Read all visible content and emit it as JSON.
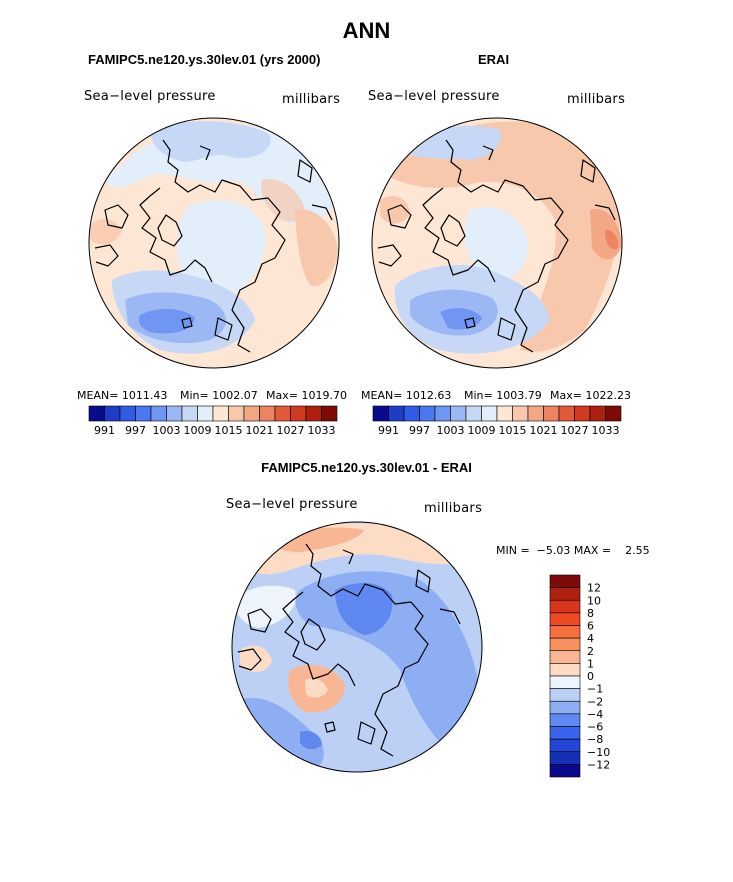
{
  "page": {
    "title": "ANN"
  },
  "panels": [
    {
      "title": "FAMIPC5.ne120.ys.30lev.01 (yrs 2000)",
      "field_label": "Sea−level pressure",
      "units_label": "millibars",
      "stats": {
        "mean": "MEAN= 1011.43",
        "min": "Min= 1002.07",
        "max": "Max= 1019.70"
      }
    },
    {
      "title": "ERAI",
      "field_label": "Sea−level pressure",
      "units_label": "millibars",
      "stats": {
        "mean": "MEAN= 1012.63",
        "min": "Min= 1003.79",
        "max": "Max= 1022.23"
      }
    },
    {
      "title": "FAMIPC5.ne120.ys.30lev.01 - ERAI",
      "field_label": "Sea−level pressure",
      "units_label": "millibars",
      "stats": {
        "minmax": "MIN =  −5.03 MAX =    2.55"
      }
    }
  ],
  "chart_data": [
    {
      "type": "heatmap",
      "title": "FAMIPC5.ne120.ys.30lev.01 (yrs 2000)",
      "variable": "Sea-level pressure",
      "units": "millibars",
      "stats": {
        "mean": 1011.43,
        "min": 1002.07,
        "max": 1019.7
      },
      "colorbar": {
        "orientation": "horizontal",
        "tick_labels": [
          "991",
          "997",
          "1003",
          "1009",
          "1015",
          "1021",
          "1027",
          "1033"
        ],
        "colors": [
          "#0a0a8c",
          "#1e3cc8",
          "#2f5be6",
          "#4a78f0",
          "#6f96f2",
          "#9cb8f4",
          "#c6d8f6",
          "#e2eef9",
          "#fde6d4",
          "#f8c8ac",
          "#f2a785",
          "#ec8462",
          "#e25a3a",
          "#cf3a20",
          "#b02010",
          "#7f0b06"
        ]
      }
    },
    {
      "type": "heatmap",
      "title": "ERAI",
      "variable": "Sea-level pressure",
      "units": "millibars",
      "stats": {
        "mean": 1012.63,
        "min": 1003.79,
        "max": 1022.23
      },
      "colorbar": {
        "orientation": "horizontal",
        "tick_labels": [
          "991",
          "997",
          "1003",
          "1009",
          "1015",
          "1021",
          "1027",
          "1033"
        ],
        "colors": [
          "#0a0a8c",
          "#1e3cc8",
          "#2f5be6",
          "#4a78f0",
          "#6f96f2",
          "#9cb8f4",
          "#c6d8f6",
          "#e2eef9",
          "#fde6d4",
          "#f8c8ac",
          "#f2a785",
          "#ec8462",
          "#e25a3a",
          "#cf3a20",
          "#b02010",
          "#7f0b06"
        ]
      }
    },
    {
      "type": "heatmap",
      "title": "FAMIPC5.ne120.ys.30lev.01 - ERAI",
      "variable": "Sea-level pressure",
      "units": "millibars",
      "stats": {
        "min": -5.03,
        "max": 2.55
      },
      "colorbar": {
        "orientation": "vertical",
        "tick_labels": [
          "12",
          "10",
          "8",
          "6",
          "4",
          "2",
          "1",
          "0",
          "−1",
          "−2",
          "−4",
          "−6",
          "−8",
          "−10",
          "−12"
        ],
        "colors": [
          "#7f0b06",
          "#b02010",
          "#d8361c",
          "#f04a22",
          "#f56f3e",
          "#f7925e",
          "#f9b695",
          "#fddcc6",
          "#eef4fb",
          "#bcd0f6",
          "#8eaef4",
          "#5f88f0",
          "#3a64ec",
          "#2446d8",
          "#1430b4",
          "#0a0a8c"
        ]
      }
    }
  ]
}
